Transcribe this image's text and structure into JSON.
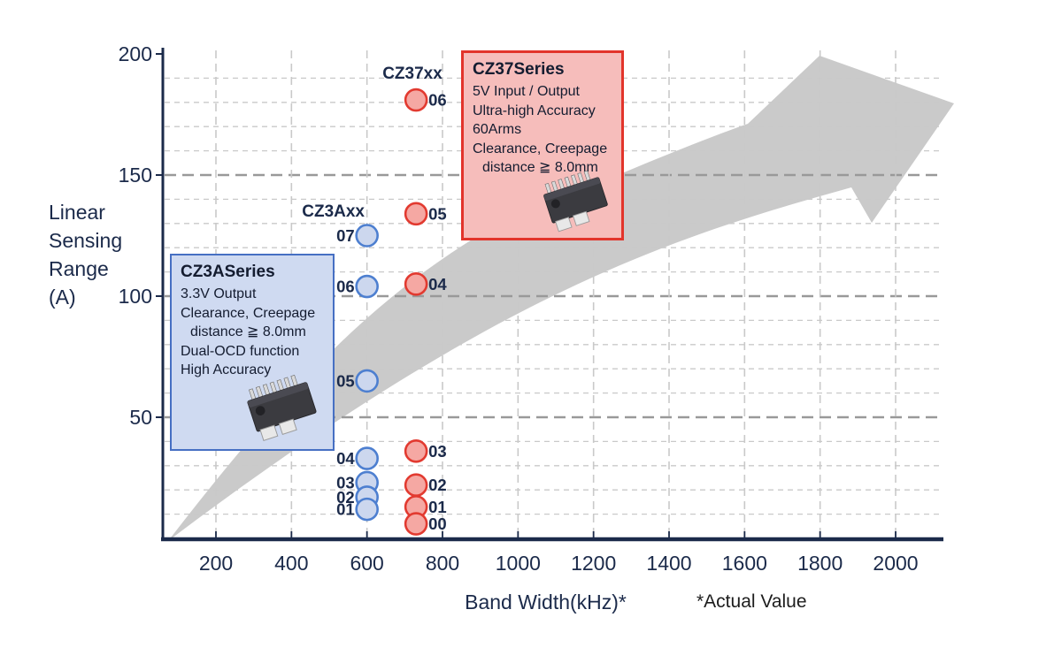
{
  "chart_data": {
    "type": "scatter",
    "title": "",
    "xlabel": "Band Width(kHz)*",
    "xlabel_note": "*Actual Value",
    "ylabel": "Linear Sensing Range (A)",
    "ylabel_lines": [
      "Linear",
      "Sensing",
      "Range",
      "(A)"
    ],
    "xlim": [
      60,
      2125
    ],
    "ylim": [
      0,
      200
    ],
    "x_ticks": [
      200,
      400,
      600,
      800,
      1000,
      1200,
      1400,
      1600,
      1800,
      2000
    ],
    "y_ticks": [
      50,
      100,
      150,
      200
    ],
    "grid": {
      "minor_step": 10,
      "major_horizontal": [
        50,
        100,
        150
      ],
      "vertical_at_x_ticks": true,
      "legend": "none"
    },
    "series": [
      {
        "name": "CZ3Axx",
        "point_fill": "#ccd7ee",
        "point_stroke": "#4d7fd0",
        "label_side": "left",
        "points": [
          {
            "label": "01",
            "x": 600,
            "y": 12
          },
          {
            "label": "02",
            "x": 600,
            "y": 17
          },
          {
            "label": "03",
            "x": 600,
            "y": 23
          },
          {
            "label": "04",
            "x": 600,
            "y": 33
          },
          {
            "label": "05",
            "x": 600,
            "y": 65
          },
          {
            "label": "06",
            "x": 600,
            "y": 104
          },
          {
            "label": "07",
            "x": 600,
            "y": 125
          }
        ]
      },
      {
        "name": "CZ37xx",
        "point_fill": "#f5a8a3",
        "point_stroke": "#e23a30",
        "label_side": "right",
        "points": [
          {
            "label": "00",
            "x": 730,
            "y": 6
          },
          {
            "label": "01",
            "x": 730,
            "y": 13
          },
          {
            "label": "02",
            "x": 730,
            "y": 22
          },
          {
            "label": "03",
            "x": 730,
            "y": 36
          },
          {
            "label": "04",
            "x": 730,
            "y": 105
          },
          {
            "label": "05",
            "x": 730,
            "y": 134
          },
          {
            "label": "06",
            "x": 730,
            "y": 181
          }
        ]
      }
    ]
  },
  "boxes": {
    "cz3a": {
      "title": "CZ3ASeries",
      "lines": [
        "3.3V Output",
        "Clearance, Creepage",
        "distance ≧ 8.0mm",
        "Dual-OCD function",
        "High Accuracy"
      ],
      "chip_icon": "soic-chip-photo"
    },
    "cz37": {
      "title": "CZ37Series",
      "lines": [
        "5V Input / Output",
        "Ultra-high Accuracy",
        "60Arms",
        "Clearance, Creepage",
        "distance ≧ 8.0mm"
      ],
      "chip_icon": "soic-chip-photo"
    }
  },
  "colors": {
    "axis": "#1b2a4a",
    "text_navy": "#1b2a4a",
    "arrow_gray": "#cacaca",
    "grid_minor": "#c9c9c9",
    "grid_major": "#999999",
    "blue_box_bg": "#cfdaf1",
    "blue_box_border": "#466fc3",
    "red_box_bg": "#f6bdbb",
    "red_box_border": "#e2342b"
  }
}
